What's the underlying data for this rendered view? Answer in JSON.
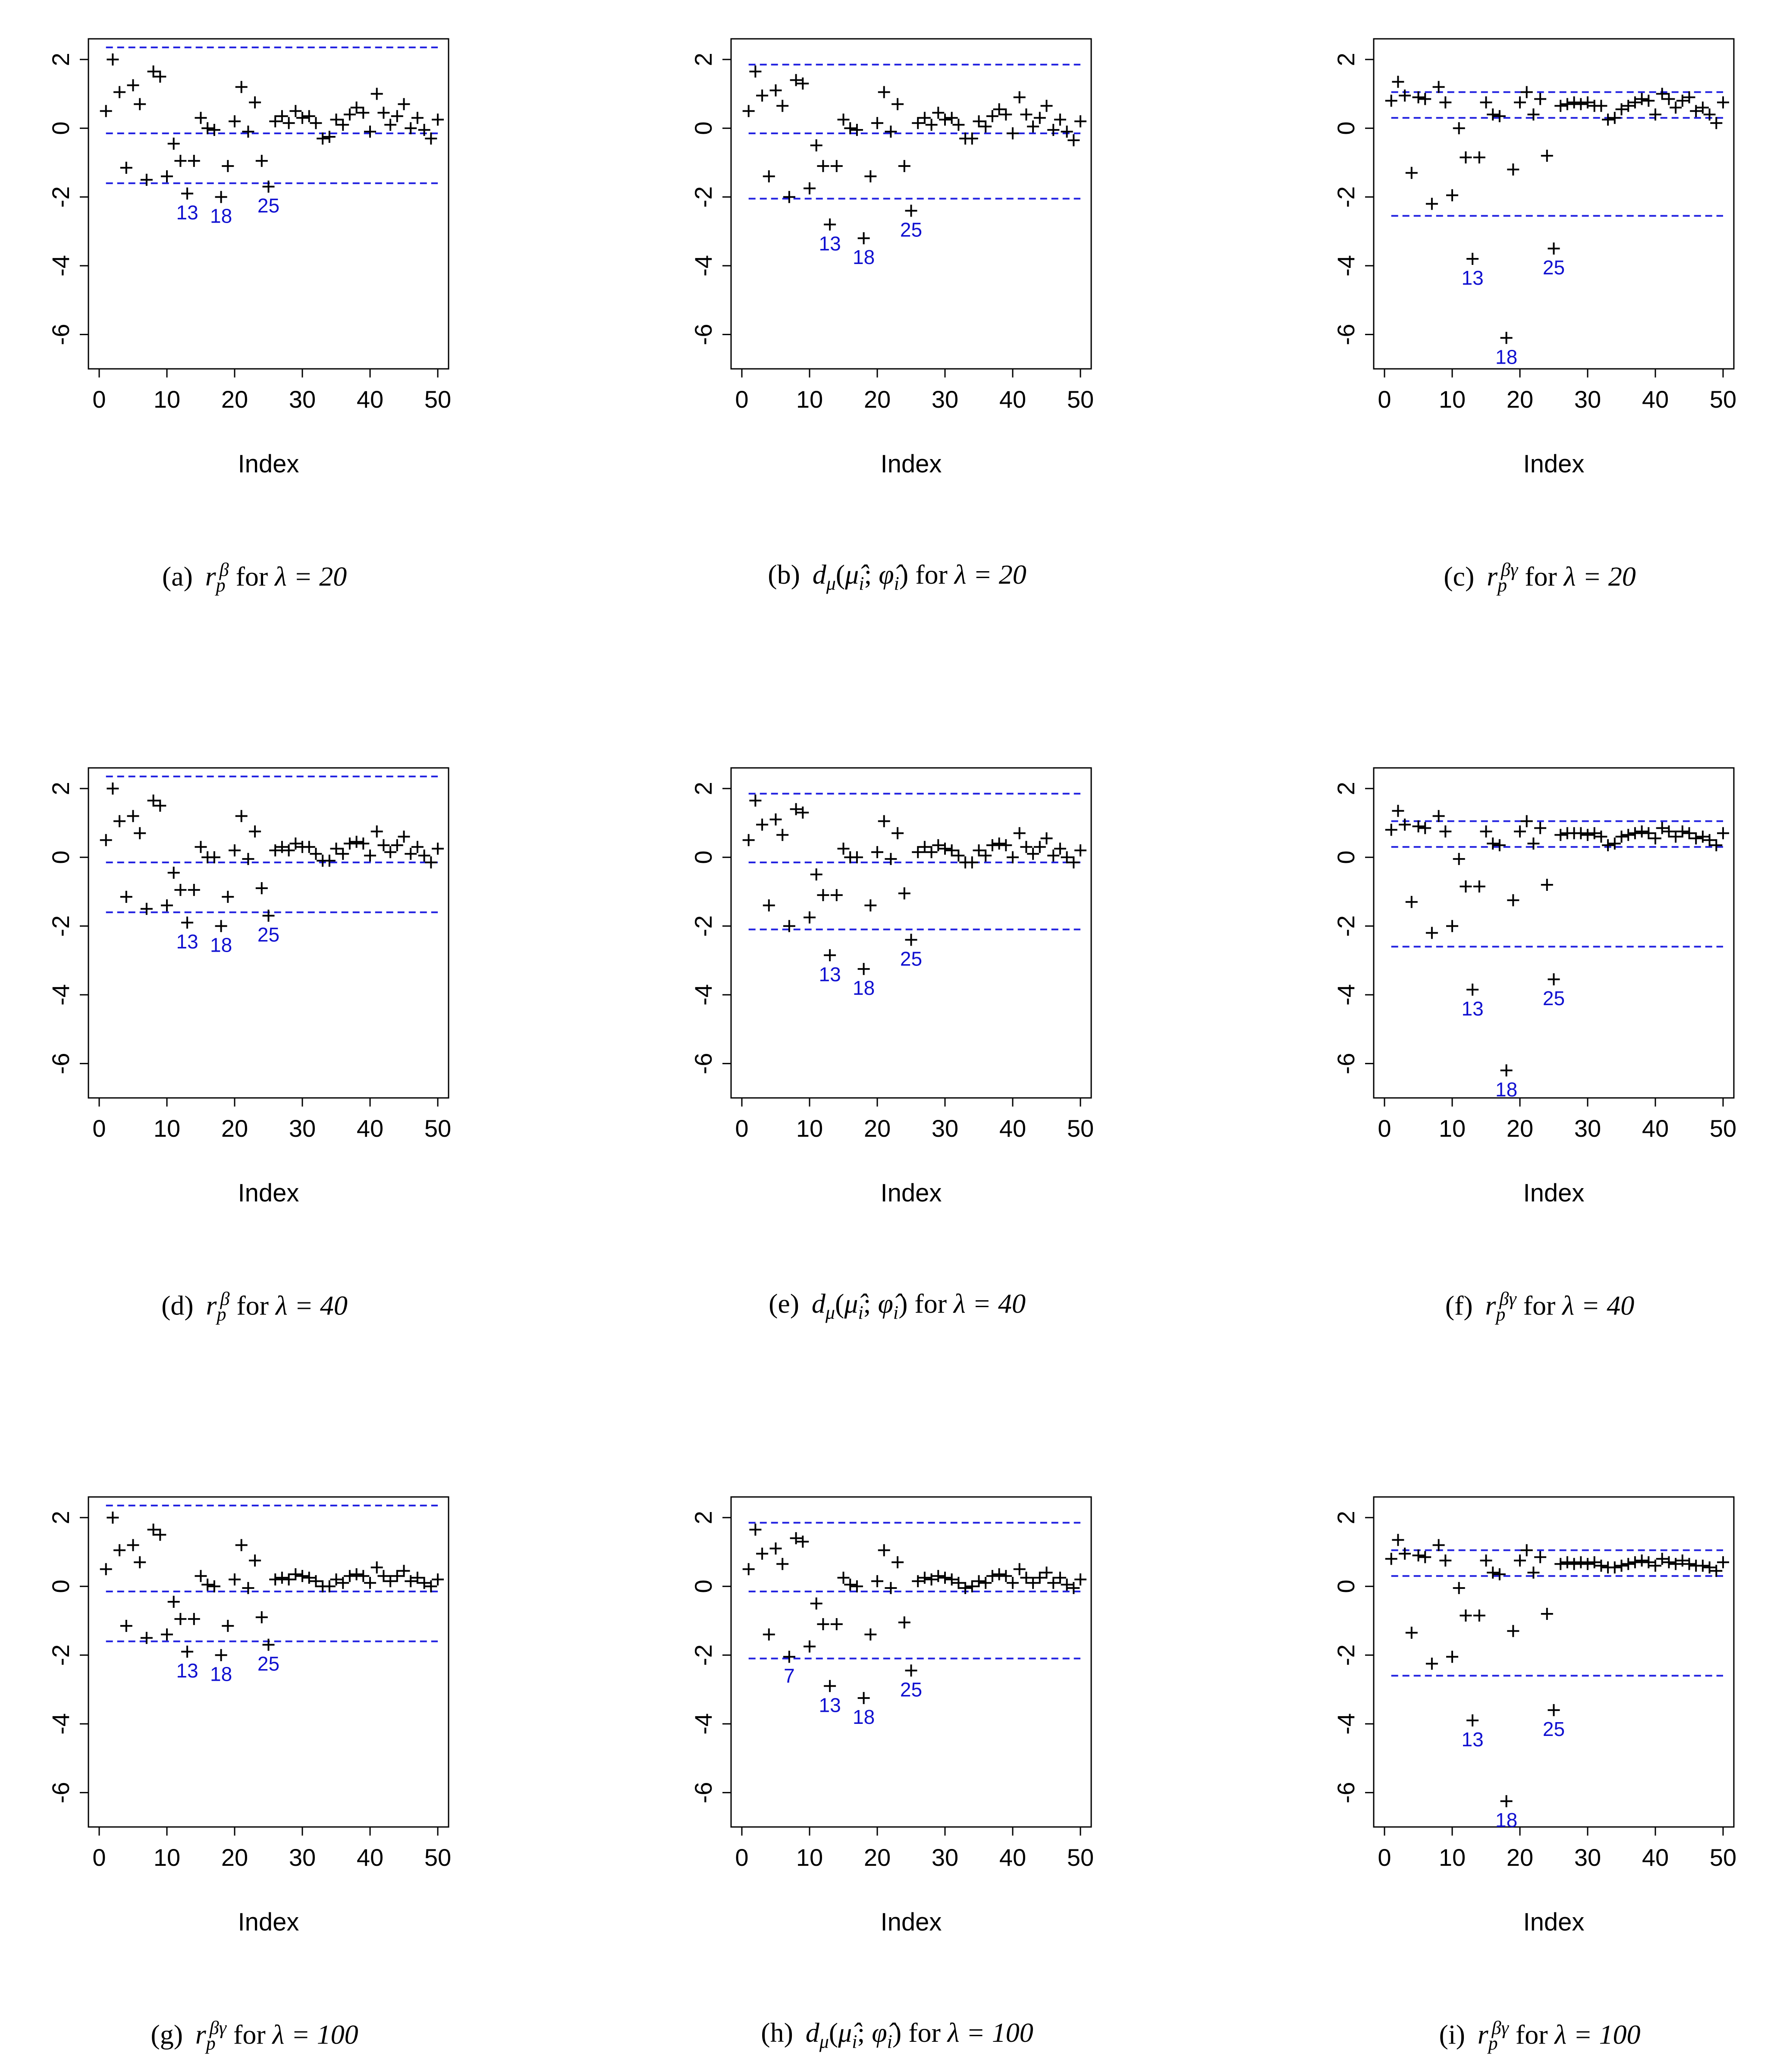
{
  "chart_data": [
    {
      "panel_label": "(a)",
      "stat": "rp_beta",
      "lambda_text": "λ = 20",
      "type": "scatter",
      "xlabel": "Index",
      "ylabel": "",
      "xlim": [
        0,
        50
      ],
      "ylim": [
        -7,
        2.6
      ],
      "xticks": [
        "0",
        "10",
        "20",
        "30",
        "40",
        "50"
      ],
      "yticks": [
        "-6",
        "-4",
        "-2",
        "0",
        "2"
      ],
      "hlines": [
        2.35,
        -0.15,
        -1.6
      ],
      "labeled_points": [
        {
          "x": 13,
          "y": -1.9,
          "label": "13"
        },
        {
          "x": 18,
          "y": -2.0,
          "label": "18"
        },
        {
          "x": 25,
          "y": -1.7,
          "label": "25"
        }
      ],
      "x": [
        1,
        2,
        3,
        4,
        5,
        6,
        7,
        8,
        9,
        10,
        11,
        12,
        13,
        14,
        15,
        16,
        17,
        18,
        19,
        20,
        21,
        22,
        23,
        24,
        25,
        26,
        27,
        28,
        29,
        30,
        31,
        32,
        33,
        34,
        35,
        36,
        37,
        38,
        39,
        40,
        41,
        42,
        43,
        44,
        45,
        46,
        47,
        48,
        49,
        50
      ],
      "y": [
        0.5,
        2.0,
        1.05,
        -1.15,
        1.25,
        0.7,
        -1.5,
        1.65,
        1.5,
        -1.4,
        -0.45,
        -0.95,
        -1.9,
        -0.95,
        0.3,
        0.0,
        -0.05,
        -2.0,
        -1.1,
        0.2,
        1.2,
        -0.1,
        0.75,
        -0.95,
        -1.7,
        0.2,
        0.35,
        0.15,
        0.5,
        0.3,
        0.35,
        0.15,
        -0.3,
        -0.25,
        0.25,
        0.1,
        0.4,
        0.6,
        0.45,
        -0.1,
        1.0,
        0.45,
        0.1,
        0.35,
        0.7,
        0.0,
        0.3,
        -0.05,
        -0.3,
        0.25
      ]
    },
    {
      "panel_label": "(b)",
      "stat": "d_mu",
      "lambda_text": "λ = 20",
      "type": "scatter",
      "xlabel": "Index",
      "ylabel": "",
      "xlim": [
        0,
        50
      ],
      "ylim": [
        -7,
        2.6
      ],
      "xticks": [
        "0",
        "10",
        "20",
        "30",
        "40",
        "50"
      ],
      "yticks": [
        "-6",
        "-4",
        "-2",
        "0",
        "2"
      ],
      "hlines": [
        1.85,
        -0.15,
        -2.05
      ],
      "labeled_points": [
        {
          "x": 13,
          "y": -2.8,
          "label": "13"
        },
        {
          "x": 18,
          "y": -3.2,
          "label": "18"
        },
        {
          "x": 25,
          "y": -2.4,
          "label": "25"
        }
      ],
      "x": [
        1,
        2,
        3,
        4,
        5,
        6,
        7,
        8,
        9,
        10,
        11,
        12,
        13,
        14,
        15,
        16,
        17,
        18,
        19,
        20,
        21,
        22,
        23,
        24,
        25,
        26,
        27,
        28,
        29,
        30,
        31,
        32,
        33,
        34,
        35,
        36,
        37,
        38,
        39,
        40,
        41,
        42,
        43,
        44,
        45,
        46,
        47,
        48,
        49,
        50
      ],
      "y": [
        0.5,
        1.65,
        0.95,
        -1.4,
        1.1,
        0.65,
        -2.0,
        1.4,
        1.3,
        -1.75,
        -0.5,
        -1.1,
        -2.8,
        -1.1,
        0.25,
        0.0,
        -0.05,
        -3.2,
        -1.4,
        0.15,
        1.05,
        -0.1,
        0.7,
        -1.1,
        -2.4,
        0.15,
        0.3,
        0.1,
        0.45,
        0.25,
        0.3,
        0.1,
        -0.3,
        -0.3,
        0.2,
        0.05,
        0.35,
        0.55,
        0.4,
        -0.15,
        0.9,
        0.4,
        0.05,
        0.3,
        0.65,
        -0.05,
        0.25,
        -0.1,
        -0.35,
        0.2
      ]
    },
    {
      "panel_label": "(c)",
      "stat": "rp_beta_gamma",
      "lambda_text": "λ = 20",
      "type": "scatter",
      "xlabel": "Index",
      "ylabel": "",
      "xlim": [
        0,
        50
      ],
      "ylim": [
        -7,
        2.6
      ],
      "xticks": [
        "0",
        "10",
        "20",
        "30",
        "40",
        "50"
      ],
      "yticks": [
        "-6",
        "-4",
        "-2",
        "0",
        "2"
      ],
      "hlines": [
        1.05,
        0.3,
        -2.55
      ],
      "labeled_points": [
        {
          "x": 13,
          "y": -3.8,
          "label": "13"
        },
        {
          "x": 18,
          "y": -6.1,
          "label": "18"
        },
        {
          "x": 25,
          "y": -3.5,
          "label": "25"
        }
      ],
      "x": [
        1,
        2,
        3,
        4,
        5,
        6,
        7,
        8,
        9,
        10,
        11,
        12,
        13,
        14,
        15,
        16,
        17,
        18,
        19,
        20,
        21,
        22,
        23,
        24,
        25,
        26,
        27,
        28,
        29,
        30,
        31,
        32,
        33,
        34,
        35,
        36,
        37,
        38,
        39,
        40,
        41,
        42,
        43,
        44,
        45,
        46,
        47,
        48,
        49,
        50
      ],
      "y": [
        0.8,
        1.35,
        0.95,
        -1.3,
        0.9,
        0.85,
        -2.2,
        1.2,
        0.75,
        -1.95,
        0.0,
        -0.85,
        -3.8,
        -0.85,
        0.75,
        0.4,
        0.35,
        -6.1,
        -1.2,
        0.75,
        1.05,
        0.4,
        0.85,
        -0.8,
        -3.5,
        0.65,
        0.7,
        0.75,
        0.7,
        0.75,
        0.65,
        0.65,
        0.25,
        0.3,
        0.55,
        0.65,
        0.75,
        0.85,
        0.8,
        0.4,
        1.0,
        0.85,
        0.6,
        0.8,
        0.9,
        0.5,
        0.6,
        0.4,
        0.15,
        0.75
      ]
    },
    {
      "panel_label": "(d)",
      "stat": "rp_beta",
      "lambda_text": "λ = 40",
      "type": "scatter",
      "xlabel": "Index",
      "ylabel": "",
      "xlim": [
        0,
        50
      ],
      "ylim": [
        -7,
        2.6
      ],
      "xticks": [
        "0",
        "10",
        "20",
        "30",
        "40",
        "50"
      ],
      "yticks": [
        "-6",
        "-4",
        "-2",
        "0",
        "2"
      ],
      "hlines": [
        2.35,
        -0.15,
        -1.6
      ],
      "labeled_points": [
        {
          "x": 13,
          "y": -1.9,
          "label": "13"
        },
        {
          "x": 18,
          "y": -2.0,
          "label": "18"
        },
        {
          "x": 25,
          "y": -1.7,
          "label": "25"
        }
      ],
      "x": [
        1,
        2,
        3,
        4,
        5,
        6,
        7,
        8,
        9,
        10,
        11,
        12,
        13,
        14,
        15,
        16,
        17,
        18,
        19,
        20,
        21,
        22,
        23,
        24,
        25,
        26,
        27,
        28,
        29,
        30,
        31,
        32,
        33,
        34,
        35,
        36,
        37,
        38,
        39,
        40,
        41,
        42,
        43,
        44,
        45,
        46,
        47,
        48,
        49,
        50
      ],
      "y": [
        0.5,
        2.0,
        1.05,
        -1.15,
        1.2,
        0.7,
        -1.5,
        1.65,
        1.5,
        -1.4,
        -0.45,
        -0.95,
        -1.9,
        -0.95,
        0.3,
        0.0,
        0.0,
        -2.0,
        -1.15,
        0.2,
        1.2,
        -0.05,
        0.75,
        -0.9,
        -1.7,
        0.2,
        0.3,
        0.2,
        0.4,
        0.3,
        0.3,
        0.1,
        -0.1,
        -0.1,
        0.25,
        0.1,
        0.4,
        0.45,
        0.4,
        0.05,
        0.75,
        0.35,
        0.15,
        0.35,
        0.6,
        0.1,
        0.3,
        0.05,
        -0.15,
        0.25
      ]
    },
    {
      "panel_label": "(e)",
      "stat": "d_mu",
      "lambda_text": "λ = 40",
      "type": "scatter",
      "xlabel": "Index",
      "ylabel": "",
      "xlim": [
        0,
        50
      ],
      "ylim": [
        -7,
        2.6
      ],
      "xticks": [
        "0",
        "10",
        "20",
        "30",
        "40",
        "50"
      ],
      "yticks": [
        "-6",
        "-4",
        "-2",
        "0",
        "2"
      ],
      "hlines": [
        1.85,
        -0.15,
        -2.1
      ],
      "labeled_points": [
        {
          "x": 13,
          "y": -2.85,
          "label": "13"
        },
        {
          "x": 18,
          "y": -3.25,
          "label": "18"
        },
        {
          "x": 25,
          "y": -2.4,
          "label": "25"
        }
      ],
      "x": [
        1,
        2,
        3,
        4,
        5,
        6,
        7,
        8,
        9,
        10,
        11,
        12,
        13,
        14,
        15,
        16,
        17,
        18,
        19,
        20,
        21,
        22,
        23,
        24,
        25,
        26,
        27,
        28,
        29,
        30,
        31,
        32,
        33,
        34,
        35,
        36,
        37,
        38,
        39,
        40,
        41,
        42,
        43,
        44,
        45,
        46,
        47,
        48,
        49,
        50
      ],
      "y": [
        0.5,
        1.65,
        0.95,
        -1.4,
        1.1,
        0.65,
        -2.0,
        1.4,
        1.3,
        -1.75,
        -0.5,
        -1.1,
        -2.85,
        -1.1,
        0.25,
        0.0,
        0.0,
        -3.25,
        -1.4,
        0.15,
        1.05,
        -0.05,
        0.7,
        -1.05,
        -2.4,
        0.15,
        0.3,
        0.15,
        0.35,
        0.25,
        0.2,
        0.05,
        -0.15,
        -0.15,
        0.2,
        0.05,
        0.35,
        0.4,
        0.35,
        0.0,
        0.7,
        0.3,
        0.1,
        0.3,
        0.55,
        0.05,
        0.25,
        0.0,
        -0.15,
        0.2
      ]
    },
    {
      "panel_label": "(f)",
      "stat": "rp_beta_gamma",
      "lambda_text": "λ = 40",
      "type": "scatter",
      "xlabel": "Index",
      "ylabel": "",
      "xlim": [
        0,
        50
      ],
      "ylim": [
        -7,
        2.6
      ],
      "xticks": [
        "0",
        "10",
        "20",
        "30",
        "40",
        "50"
      ],
      "yticks": [
        "-6",
        "-4",
        "-2",
        "0",
        "2"
      ],
      "hlines": [
        1.05,
        0.3,
        -2.6
      ],
      "labeled_points": [
        {
          "x": 13,
          "y": -3.85,
          "label": "13"
        },
        {
          "x": 18,
          "y": -6.2,
          "label": "18"
        },
        {
          "x": 25,
          "y": -3.55,
          "label": "25"
        }
      ],
      "x": [
        1,
        2,
        3,
        4,
        5,
        6,
        7,
        8,
        9,
        10,
        11,
        12,
        13,
        14,
        15,
        16,
        17,
        18,
        19,
        20,
        21,
        22,
        23,
        24,
        25,
        26,
        27,
        28,
        29,
        30,
        31,
        32,
        33,
        34,
        35,
        36,
        37,
        38,
        39,
        40,
        41,
        42,
        43,
        44,
        45,
        46,
        47,
        48,
        49,
        50
      ],
      "y": [
        0.8,
        1.35,
        0.95,
        -1.3,
        0.9,
        0.85,
        -2.2,
        1.2,
        0.75,
        -2.0,
        -0.05,
        -0.85,
        -3.85,
        -0.85,
        0.75,
        0.4,
        0.35,
        -6.2,
        -1.25,
        0.75,
        1.05,
        0.4,
        0.85,
        -0.8,
        -3.55,
        0.65,
        0.7,
        0.7,
        0.7,
        0.65,
        0.7,
        0.6,
        0.35,
        0.4,
        0.6,
        0.65,
        0.7,
        0.75,
        0.7,
        0.55,
        0.85,
        0.75,
        0.6,
        0.75,
        0.7,
        0.55,
        0.6,
        0.5,
        0.35,
        0.7
      ]
    },
    {
      "panel_label": "(g)",
      "stat": "rp_beta_gamma",
      "lambda_text": "λ = 100",
      "type": "scatter",
      "xlabel": "Index",
      "ylabel": "",
      "xlim": [
        0,
        50
      ],
      "ylim": [
        -7,
        2.6
      ],
      "xticks": [
        "0",
        "10",
        "20",
        "30",
        "40",
        "50"
      ],
      "yticks": [
        "-6",
        "-4",
        "-2",
        "0",
        "2"
      ],
      "hlines": [
        2.35,
        -0.15,
        -1.6
      ],
      "labeled_points": [
        {
          "x": 13,
          "y": -1.9,
          "label": "13"
        },
        {
          "x": 18,
          "y": -2.0,
          "label": "18"
        },
        {
          "x": 25,
          "y": -1.7,
          "label": "25"
        }
      ],
      "x": [
        1,
        2,
        3,
        4,
        5,
        6,
        7,
        8,
        9,
        10,
        11,
        12,
        13,
        14,
        15,
        16,
        17,
        18,
        19,
        20,
        21,
        22,
        23,
        24,
        25,
        26,
        27,
        28,
        29,
        30,
        31,
        32,
        33,
        34,
        35,
        36,
        37,
        38,
        39,
        40,
        41,
        42,
        43,
        44,
        45,
        46,
        47,
        48,
        49,
        50
      ],
      "y": [
        0.5,
        2.0,
        1.05,
        -1.15,
        1.2,
        0.7,
        -1.5,
        1.65,
        1.5,
        -1.4,
        -0.45,
        -0.95,
        -1.9,
        -0.95,
        0.3,
        0.05,
        0.0,
        -2.0,
        -1.15,
        0.2,
        1.2,
        -0.05,
        0.75,
        -0.9,
        -1.7,
        0.2,
        0.25,
        0.2,
        0.35,
        0.3,
        0.25,
        0.15,
        0.0,
        0.0,
        0.2,
        0.1,
        0.3,
        0.35,
        0.3,
        0.1,
        0.55,
        0.3,
        0.15,
        0.3,
        0.45,
        0.15,
        0.25,
        0.1,
        0.0,
        0.2
      ]
    },
    {
      "panel_label": "(h)",
      "stat": "d_mu",
      "lambda_text": "λ = 100",
      "type": "scatter",
      "xlabel": "Index",
      "ylabel": "",
      "xlim": [
        0,
        50
      ],
      "ylim": [
        -7,
        2.6
      ],
      "xticks": [
        "0",
        "10",
        "20",
        "30",
        "40",
        "50"
      ],
      "yticks": [
        "-6",
        "-4",
        "-2",
        "0",
        "2"
      ],
      "hlines": [
        1.85,
        -0.15,
        -2.1
      ],
      "labeled_points": [
        {
          "x": 7,
          "y": -2.05,
          "label": "7"
        },
        {
          "x": 13,
          "y": -2.9,
          "label": "13"
        },
        {
          "x": 18,
          "y": -3.25,
          "label": "18"
        },
        {
          "x": 25,
          "y": -2.45,
          "label": "25"
        }
      ],
      "x": [
        1,
        2,
        3,
        4,
        5,
        6,
        7,
        8,
        9,
        10,
        11,
        12,
        13,
        14,
        15,
        16,
        17,
        18,
        19,
        20,
        21,
        22,
        23,
        24,
        25,
        26,
        27,
        28,
        29,
        30,
        31,
        32,
        33,
        34,
        35,
        36,
        37,
        38,
        39,
        40,
        41,
        42,
        43,
        44,
        45,
        46,
        47,
        48,
        49,
        50
      ],
      "y": [
        0.5,
        1.65,
        0.95,
        -1.4,
        1.1,
        0.65,
        -2.05,
        1.4,
        1.3,
        -1.75,
        -0.5,
        -1.1,
        -2.9,
        -1.1,
        0.25,
        0.05,
        0.0,
        -3.25,
        -1.4,
        0.15,
        1.05,
        -0.05,
        0.7,
        -1.05,
        -2.45,
        0.15,
        0.25,
        0.2,
        0.3,
        0.25,
        0.2,
        0.1,
        -0.05,
        0.0,
        0.15,
        0.1,
        0.3,
        0.35,
        0.3,
        0.1,
        0.5,
        0.25,
        0.1,
        0.25,
        0.4,
        0.1,
        0.25,
        0.05,
        -0.05,
        0.2
      ]
    },
    {
      "panel_label": "(i)",
      "stat": "rp_beta_gamma",
      "lambda_text": "λ = 100",
      "type": "scatter",
      "xlabel": "Index",
      "ylabel": "",
      "xlim": [
        0,
        50
      ],
      "ylim": [
        -7,
        2.6
      ],
      "xticks": [
        "0",
        "10",
        "20",
        "30",
        "40",
        "50"
      ],
      "yticks": [
        "-6",
        "-4",
        "-2",
        "0",
        "2"
      ],
      "hlines": [
        1.05,
        0.3,
        -2.6
      ],
      "labeled_points": [
        {
          "x": 13,
          "y": -3.9,
          "label": "13"
        },
        {
          "x": 18,
          "y": -6.25,
          "label": "18"
        },
        {
          "x": 25,
          "y": -3.6,
          "label": "25"
        }
      ],
      "x": [
        1,
        2,
        3,
        4,
        5,
        6,
        7,
        8,
        9,
        10,
        11,
        12,
        13,
        14,
        15,
        16,
        17,
        18,
        19,
        20,
        21,
        22,
        23,
        24,
        25,
        26,
        27,
        28,
        29,
        30,
        31,
        32,
        33,
        34,
        35,
        36,
        37,
        38,
        39,
        40,
        41,
        42,
        43,
        44,
        45,
        46,
        47,
        48,
        49,
        50
      ],
      "y": [
        0.8,
        1.35,
        0.95,
        -1.35,
        0.9,
        0.85,
        -2.25,
        1.2,
        0.75,
        -2.05,
        -0.05,
        -0.85,
        -3.9,
        -0.85,
        0.75,
        0.4,
        0.35,
        -6.25,
        -1.3,
        0.75,
        1.05,
        0.4,
        0.85,
        -0.8,
        -3.6,
        0.65,
        0.7,
        0.65,
        0.7,
        0.65,
        0.7,
        0.6,
        0.55,
        0.55,
        0.6,
        0.65,
        0.7,
        0.75,
        0.7,
        0.6,
        0.8,
        0.7,
        0.65,
        0.75,
        0.65,
        0.6,
        0.6,
        0.55,
        0.45,
        0.7
      ]
    }
  ],
  "styles": {
    "point_color": "#000000",
    "reference_line_color": "#2020e0",
    "label_color": "#1010d0"
  }
}
